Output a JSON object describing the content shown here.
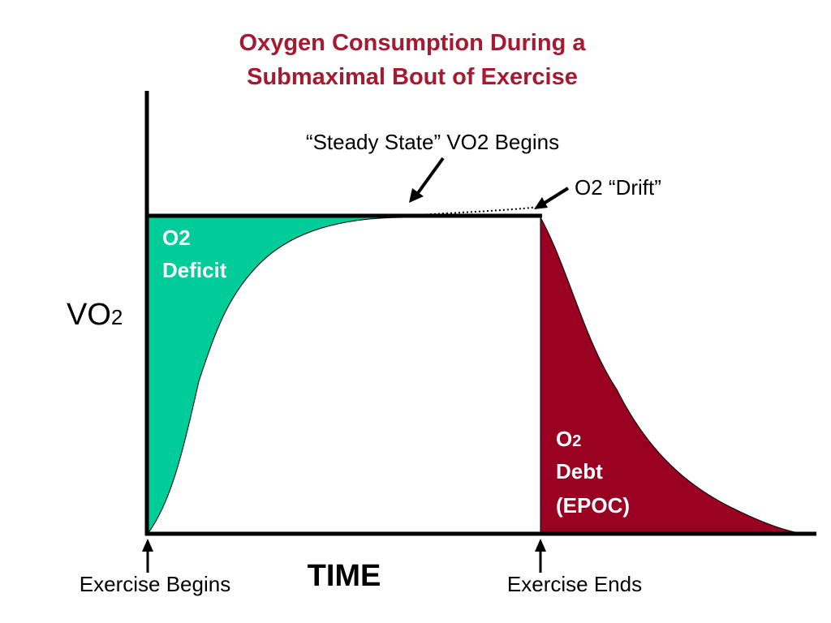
{
  "title": {
    "line1": "Oxygen Consumption During a",
    "line2": "Submaximal Bout of Exercise"
  },
  "axes": {
    "y_label": "VO",
    "y_label_sub": "2",
    "x_label": "TIME"
  },
  "regions": {
    "deficit": {
      "line1": "O",
      "line1_sub": "2",
      "line2": "Deficit"
    },
    "debt": {
      "line1": "O",
      "line1_sub": "2",
      "line2": "Debt",
      "line3": "(EPOC)"
    }
  },
  "annotations": {
    "steady_state": "“Steady State” VO2 Begins",
    "drift": "O2 “Drift”",
    "exercise_begins": "Exercise Begins",
    "exercise_ends": "Exercise Ends"
  },
  "colors": {
    "title": "#a6192e",
    "deficit": "#00cc99",
    "debt": "#990022",
    "axis": "#000000",
    "region_text": "#ffffff"
  }
}
